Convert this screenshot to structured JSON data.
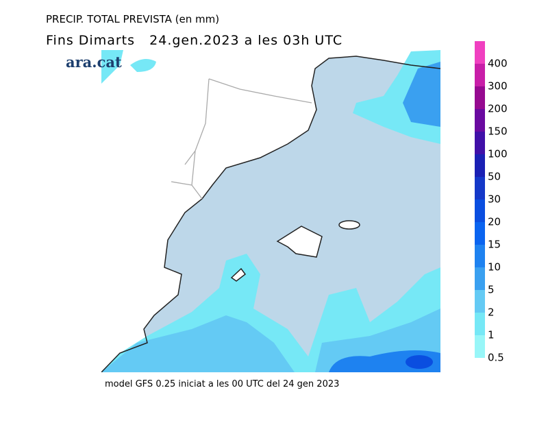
{
  "header": {
    "title": "PRECIP. TOTAL PREVISTA (en mm)",
    "subtitle": "Fins Dimarts   24.gen.2023 a les 03h UTC"
  },
  "logo": "ara.cat",
  "footer": "model GFS 0.25 iniciat a les 00 UTC del 24 gen 2023",
  "legend": {
    "levels": [
      0.5,
      1,
      2,
      5,
      10,
      15,
      20,
      30,
      50,
      100,
      150,
      200,
      300,
      400
    ],
    "colors": [
      "#98f6f8",
      "#76e8f6",
      "#64caf4",
      "#3aa0f0",
      "#1e82f0",
      "#0a64f0",
      "#0a4ee0",
      "#1438c8",
      "#1a20b4",
      "#4010a8",
      "#6a0aa0",
      "#960a90",
      "#c81ea8",
      "#f040c0"
    ]
  }
}
